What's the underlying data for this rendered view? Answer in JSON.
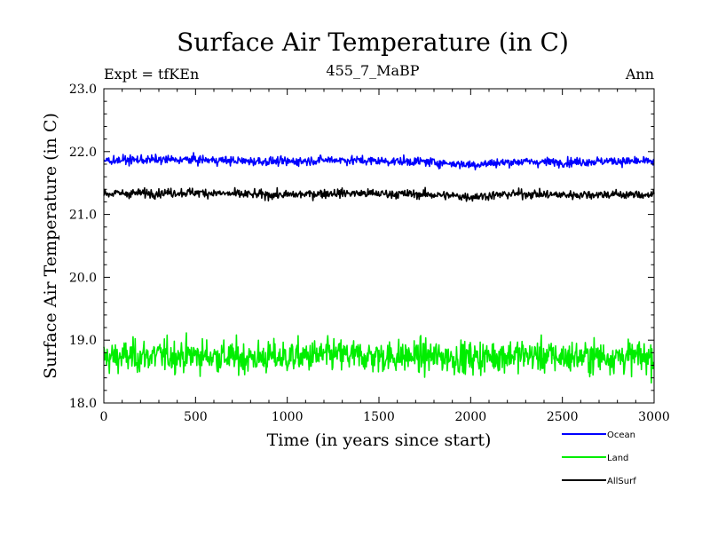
{
  "chart_data": {
    "type": "line",
    "title": "Surface Air Temperature (in C)",
    "experiment_label": "Expt = tfKEn",
    "subtitle": "455_7_MaBP",
    "period_label": "Ann",
    "xlabel": "Time (in years since start)",
    "ylabel": "Surface Air Temperature (in C)",
    "xlim": [
      0,
      3000
    ],
    "ylim": [
      18.0,
      23.0
    ],
    "xticks": [
      "0",
      "500",
      "1000",
      "1500",
      "2000",
      "2500",
      "3000"
    ],
    "yticks": [
      "18.0",
      "19.0",
      "20.0",
      "21.0",
      "22.0",
      "23.0"
    ],
    "grid": false,
    "legend_position": "bottom-right, below plot",
    "series": [
      {
        "name": "Ocean",
        "color": "#0000ff",
        "x": [
          0,
          250,
          500,
          750,
          1000,
          1250,
          1500,
          1750,
          2000,
          2250,
          2500,
          2750,
          3000
        ],
        "mean": [
          21.86,
          21.87,
          21.87,
          21.85,
          21.84,
          21.87,
          21.85,
          21.84,
          21.79,
          21.84,
          21.83,
          21.85,
          21.84
        ],
        "noise_amplitude": 0.06
      },
      {
        "name": "Land",
        "color": "#00ee00",
        "x": [
          0,
          250,
          500,
          750,
          1000,
          1250,
          1500,
          1750,
          2000,
          2250,
          2500,
          2750,
          3000
        ],
        "mean": [
          18.72,
          18.75,
          18.76,
          18.72,
          18.73,
          18.76,
          18.74,
          18.74,
          18.72,
          18.77,
          18.73,
          18.74,
          18.73
        ],
        "noise_amplitude": 0.22
      },
      {
        "name": "AllSurf",
        "color": "#000000",
        "x": [
          0,
          250,
          500,
          750,
          1000,
          1250,
          1500,
          1750,
          2000,
          2250,
          2500,
          2750,
          3000
        ],
        "mean": [
          21.33,
          21.34,
          21.35,
          21.32,
          21.31,
          21.34,
          21.33,
          21.32,
          21.28,
          21.33,
          21.31,
          21.32,
          21.31
        ],
        "noise_amplitude": 0.06
      }
    ]
  }
}
